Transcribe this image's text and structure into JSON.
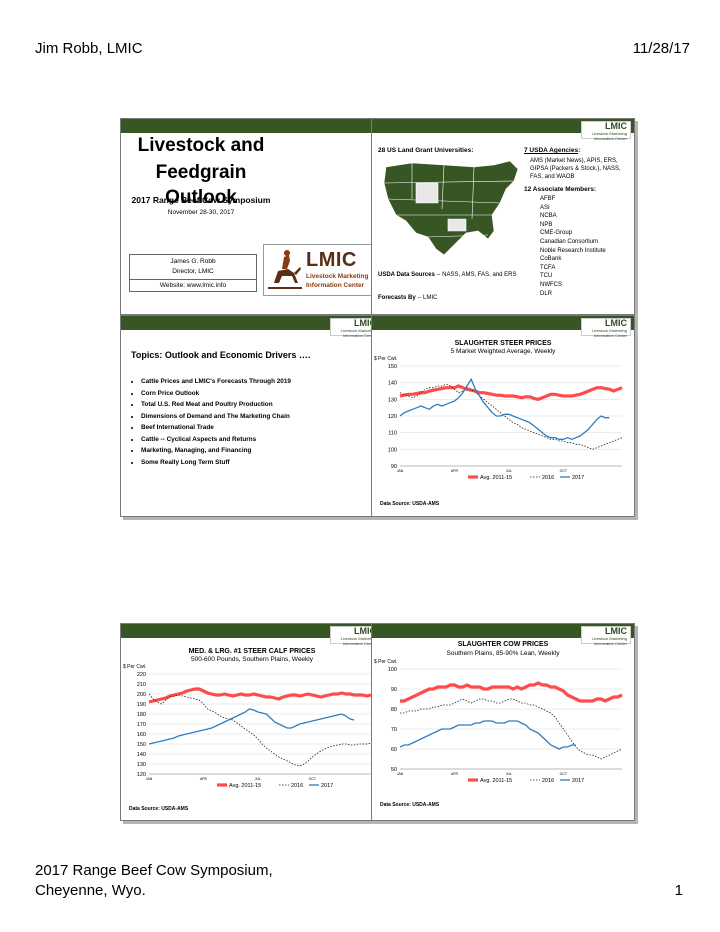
{
  "header": {
    "author": "Jim Robb, LMIC",
    "date": "11/28/17"
  },
  "footer": {
    "line1": "2017 Range Beef Cow Symposium,",
    "line2": "Cheyenne, Wyo.",
    "page": "1"
  },
  "logo": {
    "word": "LMIC",
    "line1": "Livestock Marketing",
    "line2": "Information Center",
    "mini_sub": "Livestock Marketing Information Center"
  },
  "slide1": {
    "title_line1": "Livestock and",
    "title_line2": "Feedgrain Outlook",
    "event": "2017 Range Beef Cow Symposium",
    "dates": "November 28-30, 2017",
    "presenter": "James G. Robb",
    "role": "Director, LMIC",
    "website": "Website: www.lmic.info"
  },
  "slide2": {
    "land_grant": "28 US Land Grant Universities:",
    "agencies_head": "7 USDA Agencies",
    "agencies_colon": ":",
    "agencies_text": "AMS (Market News), APIS, ERS, GIPSA (Packers & Stock.), NASS, FAS, and WAOB",
    "members_head": "12 Associate Members:",
    "members": [
      "AFBF",
      "ASI",
      "NCBA",
      "NPB",
      "CME-Group",
      "Canadian Consortium",
      "Noble Research Institute",
      "CoBank",
      "TCFA",
      "TCU",
      "NWFCS",
      "DLR"
    ],
    "sources_label": "USDA Data Sources",
    "sources_text": " -- NASS, AMS, FAS, and ERS",
    "forecasts_label": "Forecasts By",
    "forecasts_text": " -- LMIC"
  },
  "slide3": {
    "title": "Topics: Outlook and Economic Drivers ….",
    "topics": [
      "Cattle Prices and LMIC's Forecasts Through 2019",
      "Corn Price Outlook",
      "Total U.S. Red Meat and Poultry Production",
      "Dimensions of Demand and The Marketing Chain",
      "Beef International Trade",
      "Cattle -- Cyclical Aspects and Returns",
      "Marketing, Managing, and Financing",
      "Some Really Long Term Stuff"
    ]
  },
  "colors": {
    "avg": "#ff4b4b",
    "y2016": "#222222",
    "y2017": "#2f7dbf",
    "greenbar": "#375623"
  },
  "charts": [
    {
      "id": "steer",
      "title": "SLAUGHTER STEER PRICES",
      "subtitle": "5 Market Weighted Average, Weekly",
      "unit": "$ Per Cwt.",
      "ylim": [
        90,
        150
      ],
      "yticks": [
        90,
        100,
        110,
        120,
        130,
        140,
        150
      ],
      "xticks": [
        {
          "label": "JAN",
          "w": 1
        },
        {
          "label": "APR",
          "w": 14
        },
        {
          "label": "JUL",
          "w": 27
        },
        {
          "label": "OCT",
          "w": 40
        }
      ],
      "legend": [
        "Avg. 2011-15",
        "2016",
        "2017"
      ],
      "source": "Data Source:  USDA-AMS",
      "series": {
        "avg": [
          132,
          132.5,
          133,
          133,
          133.5,
          134,
          134,
          135,
          135.5,
          136,
          136.5,
          137,
          137,
          137,
          138,
          137,
          136,
          135.5,
          135,
          134,
          134,
          133.5,
          133,
          132.5,
          132.5,
          132,
          132,
          132,
          131.5,
          131,
          131.5,
          131.5,
          130.5,
          130,
          131,
          132,
          133,
          133,
          132.5,
          132,
          132,
          132,
          132.5,
          133,
          134,
          135,
          136,
          137,
          137,
          136.5,
          136,
          135,
          136,
          137
        ],
        "y2016": [
          134,
          133,
          132,
          131,
          132,
          134,
          136,
          137,
          137,
          138,
          138,
          139,
          138,
          136,
          134,
          135,
          137,
          136,
          134,
          132,
          130,
          128,
          126,
          124,
          122,
          120,
          118,
          116,
          115,
          113,
          112,
          111,
          110,
          109,
          108,
          107,
          106,
          106,
          105,
          105,
          104,
          104,
          103,
          103,
          102,
          101,
          100,
          101,
          102,
          103,
          104,
          105,
          106,
          107
        ],
        "y2017": [
          120,
          122,
          123,
          124,
          125,
          126,
          125,
          124,
          126,
          127,
          126,
          127,
          128,
          129,
          131,
          134,
          138,
          142,
          136,
          132,
          128,
          125,
          122,
          120,
          120,
          121,
          121,
          120,
          119,
          118,
          117,
          116,
          114,
          112,
          110,
          108,
          107,
          107,
          106,
          106,
          107,
          106,
          107,
          108,
          110,
          112,
          115,
          118,
          120,
          119,
          119,
          null,
          null,
          null
        ]
      }
    },
    {
      "id": "calf",
      "title": "MED. & LRG. #1 STEER CALF PRICES",
      "subtitle": "500-600 Pounds, Southern Plains, Weekly",
      "unit": "$ Per Cwt.",
      "ylim": [
        120,
        220
      ],
      "yticks": [
        120,
        130,
        140,
        150,
        160,
        170,
        180,
        190,
        200,
        210,
        220
      ],
      "xticks": [
        {
          "label": "JAN",
          "w": 1
        },
        {
          "label": "APR",
          "w": 14
        },
        {
          "label": "JUL",
          "w": 27
        },
        {
          "label": "OCT",
          "w": 40
        }
      ],
      "legend": [
        "Avg. 2011-15",
        "2016",
        "2017"
      ],
      "source": "Data Source:  USDA-AMS",
      "series": {
        "avg": [
          192,
          193,
          194,
          195,
          196,
          198,
          199,
          200,
          201,
          203,
          204,
          205,
          205,
          203,
          201,
          200,
          199,
          199,
          200,
          199,
          198,
          199,
          200,
          199,
          199,
          200,
          199,
          198,
          197,
          197,
          196,
          195,
          197,
          198,
          199,
          199,
          198,
          199,
          200,
          199,
          198,
          197,
          198,
          199,
          200,
          200,
          201,
          200,
          200,
          199,
          199,
          199,
          198,
          199
        ],
        "y2016": [
          200,
          195,
          192,
          190,
          194,
          197,
          198,
          199,
          198,
          197,
          196,
          195,
          194,
          190,
          185,
          183,
          181,
          178,
          176,
          175,
          174,
          171,
          168,
          165,
          162,
          159,
          155,
          150,
          146,
          143,
          140,
          137,
          135,
          133,
          131,
          129,
          128,
          130,
          133,
          137,
          140,
          143,
          145,
          147,
          148,
          149,
          150,
          150,
          149,
          149,
          150,
          150,
          150,
          151
        ],
        "y2017": [
          150,
          151,
          152,
          153,
          154,
          155,
          156,
          158,
          159,
          160,
          161,
          162,
          163,
          164,
          165,
          166,
          168,
          170,
          172,
          174,
          176,
          178,
          180,
          182,
          185,
          184,
          182,
          181,
          180,
          176,
          172,
          170,
          168,
          166,
          166,
          168,
          170,
          171,
          172,
          173,
          174,
          175,
          176,
          177,
          178,
          179,
          180,
          178,
          175,
          174,
          null,
          null,
          null,
          null
        ]
      }
    },
    {
      "id": "cow",
      "title": "SLAUGHTER COW PRICES",
      "subtitle": "Southern Plains, 85-90% Lean, Weekly",
      "unit": "$ Per Cwt.",
      "ylim": [
        50,
        100
      ],
      "yticks": [
        50,
        60,
        70,
        80,
        90,
        100
      ],
      "xticks": [
        {
          "label": "JAN",
          "w": 1
        },
        {
          "label": "APR",
          "w": 14
        },
        {
          "label": "JUL",
          "w": 27
        },
        {
          "label": "OCT",
          "w": 40
        }
      ],
      "legend": [
        "Avg. 2011-15",
        "2016",
        "2017"
      ],
      "source": "Data Source:  USDA-AMS",
      "series": {
        "avg": [
          84,
          84,
          85,
          86,
          87,
          88,
          89,
          90,
          90,
          91,
          91,
          91,
          92,
          92,
          91,
          91,
          92,
          91,
          91,
          91,
          90,
          90,
          91,
          91,
          91,
          91,
          91,
          90,
          91,
          90,
          91,
          92,
          92,
          93,
          92,
          92,
          91,
          91,
          90,
          89,
          87,
          86,
          85,
          84,
          84,
          84,
          84,
          85,
          85,
          84,
          85,
          86,
          86,
          87
        ],
        "y2016": [
          78,
          78,
          79,
          79,
          79,
          80,
          80,
          80,
          81,
          81,
          82,
          82,
          82,
          83,
          84,
          85,
          84,
          83,
          84,
          85,
          85,
          84,
          84,
          83,
          83,
          84,
          85,
          85,
          84,
          83,
          83,
          82,
          82,
          81,
          80,
          79,
          78,
          76,
          73,
          70,
          67,
          64,
          61,
          59,
          58,
          57,
          57,
          56,
          55,
          56,
          57,
          58,
          59,
          60
        ],
        "y2017": [
          61,
          62,
          62,
          63,
          64,
          65,
          66,
          67,
          68,
          69,
          70,
          70,
          70,
          71,
          72,
          72,
          72,
          72,
          73,
          73,
          74,
          74,
          74,
          73,
          73,
          73,
          74,
          74,
          74,
          73,
          72,
          70,
          69,
          68,
          66,
          64,
          62,
          61,
          60,
          61,
          61,
          62,
          62,
          null,
          null,
          null,
          null,
          null,
          null,
          null,
          null,
          null,
          null,
          null
        ]
      }
    }
  ]
}
